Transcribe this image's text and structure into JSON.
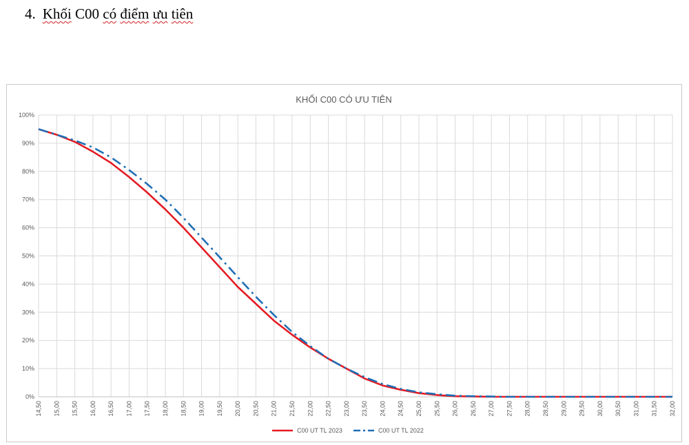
{
  "heading": {
    "number": "4.",
    "word1": "Khối",
    "word2": "C00",
    "word3": "có",
    "word4": "điểm",
    "word5": "ưu",
    "word6": "tiên"
  },
  "chart_data": {
    "type": "line",
    "title": "KHỐI C00 CÓ ƯU TIÊN",
    "xlabel": "",
    "ylabel": "",
    "ylim": [
      0,
      100
    ],
    "grid": "vertical-and-horizontal",
    "legend_position": "bottom",
    "x": [
      "14,50",
      "15,00",
      "15,50",
      "16,00",
      "16,50",
      "17,00",
      "17,50",
      "18,00",
      "18,50",
      "19,00",
      "19,50",
      "20,00",
      "20,50",
      "21,00",
      "21,50",
      "22,00",
      "22,50",
      "23,00",
      "23,50",
      "24,00",
      "24,50",
      "25,00",
      "25,50",
      "26,00",
      "26,50",
      "27,00",
      "27,50",
      "28,00",
      "28,50",
      "29,00",
      "29,50",
      "30,00",
      "30,50",
      "31,00",
      "31,50",
      "32,00"
    ],
    "y_ticks": [
      "0%",
      "10%",
      "20%",
      "30%",
      "40%",
      "50%",
      "60%",
      "70%",
      "80%",
      "90%",
      "100%"
    ],
    "series": [
      {
        "name": "C00 UT TL 2023",
        "color": "#e31b23",
        "style": "solid",
        "values": [
          95,
          93,
          90.5,
          87,
          83,
          78,
          72.5,
          66.5,
          60,
          53,
          46,
          39,
          33,
          27,
          22,
          17.5,
          13.5,
          10,
          6.5,
          4,
          2.5,
          1.3,
          0.6,
          0.2,
          0.1,
          0,
          0,
          0,
          0,
          0,
          0,
          0,
          0,
          0,
          0,
          0
        ]
      },
      {
        "name": "C00 UT TL 2022",
        "color": "#1f6fb5",
        "style": "dash-dot",
        "values": [
          95,
          93,
          91,
          88.5,
          85,
          80.5,
          75.5,
          70,
          63.5,
          56.5,
          49.5,
          42.5,
          35.5,
          29,
          23,
          18,
          13.5,
          10,
          7,
          4.5,
          2.8,
          1.6,
          0.9,
          0.4,
          0.2,
          0.1,
          0,
          0,
          0,
          0,
          0,
          0,
          0,
          0,
          0,
          0
        ]
      }
    ]
  }
}
